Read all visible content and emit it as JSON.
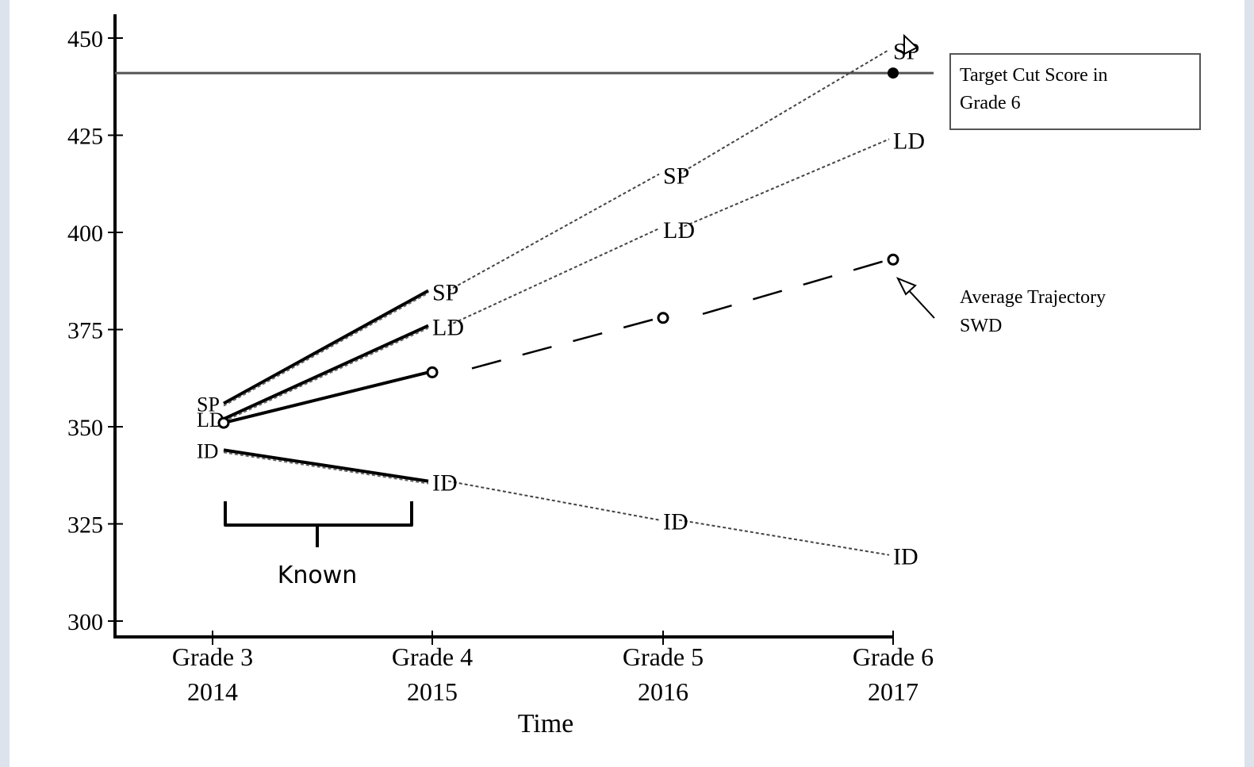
{
  "chart_data": {
    "type": "line",
    "xlabel": "Time",
    "ylabel": "",
    "ylim": [
      300,
      460
    ],
    "yticks": [
      300,
      325,
      350,
      375,
      400,
      425,
      450
    ],
    "categories": [
      {
        "grade": "Grade 3",
        "year": "2014"
      },
      {
        "grade": "Grade 4",
        "year": "2015"
      },
      {
        "grade": "Grade 5",
        "year": "2016"
      },
      {
        "grade": "Grade 6",
        "year": "2017"
      }
    ],
    "target": {
      "value": 441,
      "label": [
        "Target Cut Score in",
        "Grade 6"
      ]
    },
    "series": [
      {
        "name": "SP",
        "start": 356,
        "known": 385,
        "projected": [
          385,
          415,
          447
        ]
      },
      {
        "name": "LD",
        "start": 352,
        "known": 376,
        "projected": [
          376,
          401,
          424
        ]
      },
      {
        "name": "ID",
        "start": 344,
        "known": 336,
        "projected": [
          336,
          326,
          317
        ]
      }
    ],
    "average": {
      "label": [
        "Average Trajectory",
        "SWD"
      ],
      "start": 351,
      "values": [
        364,
        378,
        393
      ]
    },
    "annotations": {
      "known": "Known"
    }
  }
}
